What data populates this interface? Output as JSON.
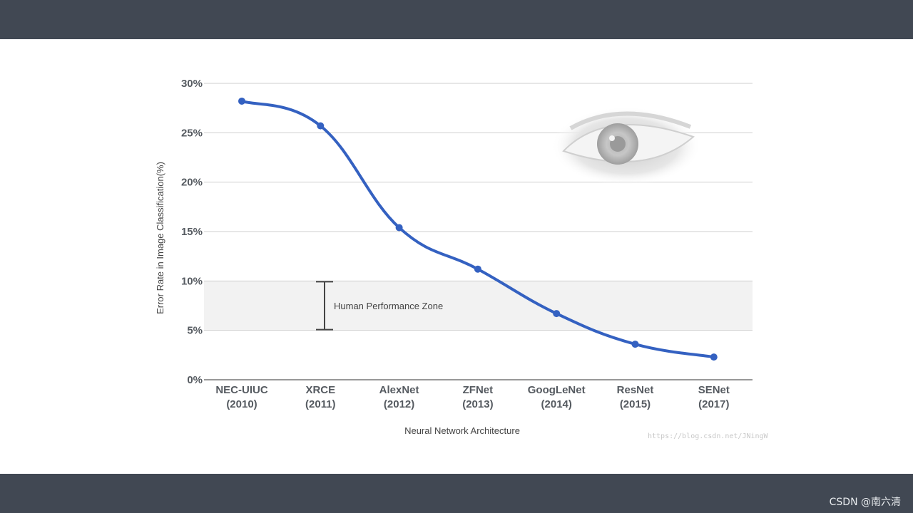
{
  "slide": {
    "credit": "CSDN @南六清"
  },
  "chart_data": {
    "type": "line",
    "categories": [
      [
        "NEC-UIUC",
        "(2010)"
      ],
      [
        "XRCE",
        "(2011)"
      ],
      [
        "AlexNet",
        "(2012)"
      ],
      [
        "ZFNet",
        "(2013)"
      ],
      [
        "GoogLeNet",
        "(2014)"
      ],
      [
        "ResNet",
        "(2015)"
      ],
      [
        "SENet",
        "(2017)"
      ]
    ],
    "values": [
      28.2,
      25.7,
      15.4,
      11.2,
      6.7,
      3.6,
      2.3
    ],
    "xlabel": "Neural Network Architecture",
    "ylabel": "Error Rate in Image Classification(%)",
    "ylim": [
      0,
      30
    ],
    "yticks": [
      "0%",
      "5%",
      "10%",
      "15%",
      "20%",
      "25%",
      "30%"
    ],
    "ytick_values": [
      0,
      5,
      10,
      15,
      20,
      25,
      30
    ],
    "grid": true,
    "line_color": "#3461c1",
    "band": {
      "label": "Human Performance Zone",
      "range": [
        5,
        10
      ],
      "color": "#f2f2f2"
    },
    "watermark": "https://blog.csdn.net/JNingW"
  }
}
